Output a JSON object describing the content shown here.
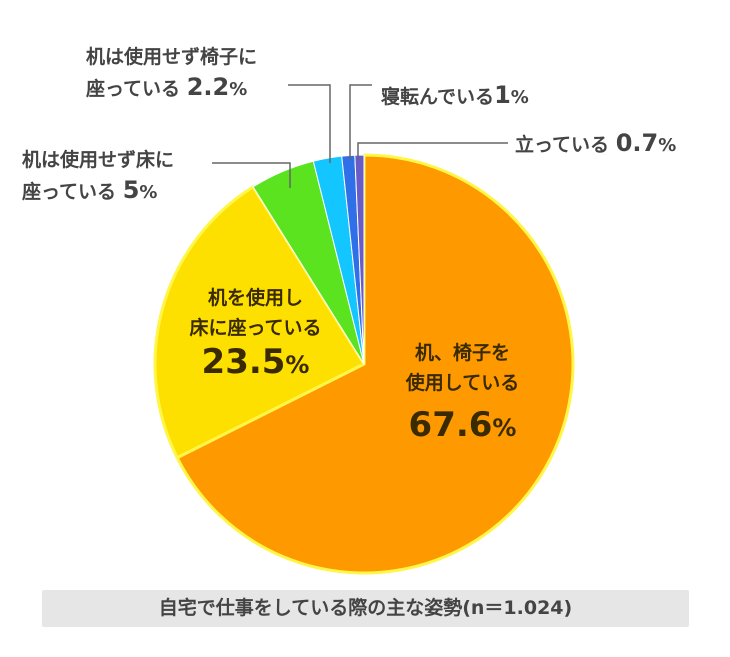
{
  "chart_data": {
    "type": "pie",
    "categories": [
      "机、椅子を使用している",
      "机を使用し床に座っている",
      "机は使用せず床に座っている",
      "机は使用せず椅子に座っている",
      "寝転んでいる",
      "立っている"
    ],
    "values": [
      67.6,
      23.5,
      5,
      2.2,
      1,
      0.7
    ],
    "colors": [
      "#fe9a00",
      "#fee000",
      "#5ae31e",
      "#14c6ff",
      "#2f6fe8",
      "#6a5cc6"
    ],
    "title": "自宅で仕事をしている際の主な姿勢(n＝1.024)",
    "labels": [
      {
        "line1": "机、椅子を",
        "line2": "使用している",
        "value": "67.6",
        "unit": "%"
      },
      {
        "line1": "机を使用し",
        "line2": "床に座っている",
        "value": "23.5",
        "unit": "%"
      },
      {
        "line1": "机は使用せず床に",
        "line2": "座っている",
        "value": "5",
        "unit": "%"
      },
      {
        "line1": "机は使用せず椅子に",
        "line2": "座っている",
        "value": "2.2",
        "unit": "%"
      },
      {
        "line1": "寝転んでいる",
        "line2": "",
        "value": "1",
        "unit": "%"
      },
      {
        "line1": "立っている",
        "line2": "",
        "value": "0.7",
        "unit": "%"
      }
    ]
  }
}
